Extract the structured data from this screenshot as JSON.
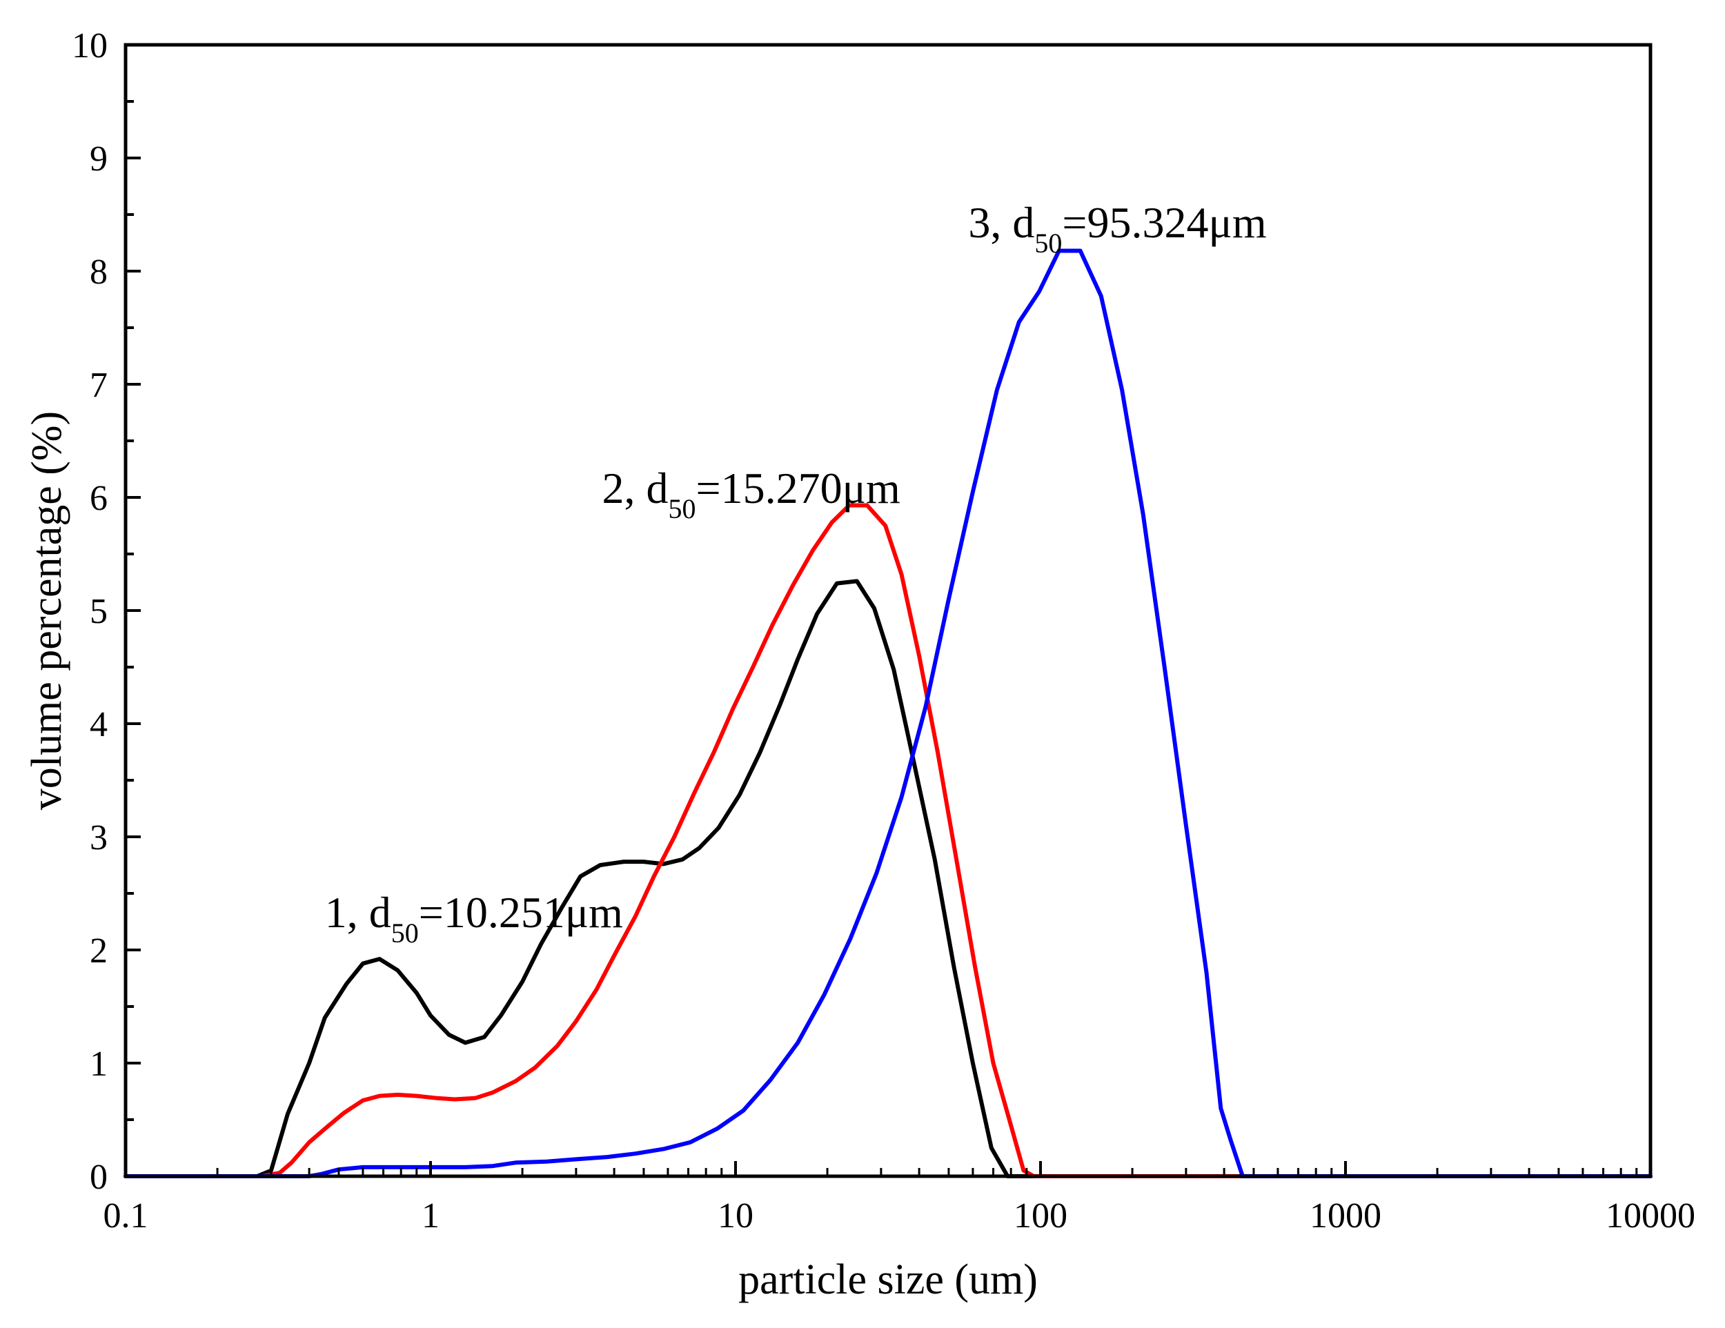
{
  "chart_data": {
    "type": "line",
    "title": "",
    "xlabel": "particle size (um)",
    "ylabel": "volume percentage (%)",
    "xscale": "log",
    "xlim": [
      0.1,
      10000
    ],
    "ylim": [
      0,
      10
    ],
    "x_ticks": [
      {
        "value": 0.1,
        "label": "0.1"
      },
      {
        "value": 1,
        "label": "1"
      },
      {
        "value": 10,
        "label": "10"
      },
      {
        "value": 100,
        "label": "100"
      },
      {
        "value": 1000,
        "label": "1000"
      },
      {
        "value": 10000,
        "label": "10000"
      }
    ],
    "y_ticks": [
      {
        "value": 0,
        "label": "0"
      },
      {
        "value": 1,
        "label": "1"
      },
      {
        "value": 2,
        "label": "2"
      },
      {
        "value": 3,
        "label": "3"
      },
      {
        "value": 4,
        "label": "4"
      },
      {
        "value": 5,
        "label": "5"
      },
      {
        "value": 6,
        "label": "6"
      },
      {
        "value": 7,
        "label": "7"
      },
      {
        "value": 8,
        "label": "8"
      },
      {
        "value": 9,
        "label": "9"
      },
      {
        "value": 10,
        "label": "10"
      }
    ],
    "grid": false,
    "series": [
      {
        "name": "1",
        "color": "#000000",
        "points": [
          [
            0.1,
            0
          ],
          [
            0.27,
            0
          ],
          [
            0.3,
            0.05
          ],
          [
            0.34,
            0.55
          ],
          [
            0.4,
            1.0
          ],
          [
            0.45,
            1.4
          ],
          [
            0.53,
            1.7
          ],
          [
            0.6,
            1.88
          ],
          [
            0.68,
            1.92
          ],
          [
            0.78,
            1.82
          ],
          [
            0.9,
            1.62
          ],
          [
            1.0,
            1.42
          ],
          [
            1.15,
            1.25
          ],
          [
            1.3,
            1.18
          ],
          [
            1.5,
            1.23
          ],
          [
            1.7,
            1.42
          ],
          [
            2.0,
            1.72
          ],
          [
            2.3,
            2.05
          ],
          [
            2.7,
            2.38
          ],
          [
            3.1,
            2.65
          ],
          [
            3.6,
            2.75
          ],
          [
            4.3,
            2.78
          ],
          [
            5.0,
            2.78
          ],
          [
            5.8,
            2.76
          ],
          [
            6.7,
            2.8
          ],
          [
            7.6,
            2.9
          ],
          [
            8.8,
            3.08
          ],
          [
            10.3,
            3.37
          ],
          [
            12.0,
            3.74
          ],
          [
            14,
            4.17
          ],
          [
            16,
            4.57
          ],
          [
            18.5,
            4.97
          ],
          [
            21.5,
            5.24
          ],
          [
            25,
            5.26
          ],
          [
            28.5,
            5.02
          ],
          [
            33,
            4.48
          ],
          [
            38,
            3.72
          ],
          [
            45,
            2.8
          ],
          [
            52,
            1.85
          ],
          [
            60,
            1.0
          ],
          [
            69,
            0.25
          ],
          [
            78,
            0
          ],
          [
            10000,
            0
          ]
        ]
      },
      {
        "name": "2",
        "color": "#ff0000",
        "points": [
          [
            0.1,
            0
          ],
          [
            0.28,
            0
          ],
          [
            0.32,
            0.03
          ],
          [
            0.35,
            0.12
          ],
          [
            0.4,
            0.3
          ],
          [
            0.46,
            0.44
          ],
          [
            0.52,
            0.56
          ],
          [
            0.6,
            0.67
          ],
          [
            0.68,
            0.71
          ],
          [
            0.78,
            0.72
          ],
          [
            0.9,
            0.71
          ],
          [
            1.05,
            0.69
          ],
          [
            1.2,
            0.68
          ],
          [
            1.4,
            0.69
          ],
          [
            1.6,
            0.74
          ],
          [
            1.9,
            0.84
          ],
          [
            2.2,
            0.96
          ],
          [
            2.6,
            1.15
          ],
          [
            3.0,
            1.37
          ],
          [
            3.5,
            1.65
          ],
          [
            4.0,
            1.95
          ],
          [
            4.7,
            2.3
          ],
          [
            5.4,
            2.65
          ],
          [
            6.3,
            3.0
          ],
          [
            7.3,
            3.38
          ],
          [
            8.5,
            3.75
          ],
          [
            9.8,
            4.13
          ],
          [
            11.4,
            4.5
          ],
          [
            13.2,
            4.87
          ],
          [
            15.4,
            5.22
          ],
          [
            17.9,
            5.53
          ],
          [
            20.7,
            5.78
          ],
          [
            23.6,
            5.93
          ],
          [
            27,
            5.93
          ],
          [
            31,
            5.75
          ],
          [
            35,
            5.32
          ],
          [
            40,
            4.6
          ],
          [
            46,
            3.75
          ],
          [
            53,
            2.8
          ],
          [
            61,
            1.85
          ],
          [
            70,
            1.0
          ],
          [
            79,
            0.5
          ],
          [
            88,
            0.05
          ],
          [
            95,
            0
          ],
          [
            10000,
            0
          ]
        ]
      },
      {
        "name": "3",
        "color": "#0000ff",
        "points": [
          [
            0.1,
            0
          ],
          [
            0.4,
            0
          ],
          [
            0.44,
            0.02
          ],
          [
            0.5,
            0.06
          ],
          [
            0.6,
            0.08
          ],
          [
            0.75,
            0.08
          ],
          [
            1.0,
            0.08
          ],
          [
            1.3,
            0.08
          ],
          [
            1.6,
            0.09
          ],
          [
            1.9,
            0.12
          ],
          [
            2.4,
            0.13
          ],
          [
            3.0,
            0.15
          ],
          [
            3.8,
            0.17
          ],
          [
            4.7,
            0.2
          ],
          [
            5.8,
            0.24
          ],
          [
            7.1,
            0.3
          ],
          [
            8.7,
            0.42
          ],
          [
            10.6,
            0.58
          ],
          [
            13,
            0.85
          ],
          [
            16,
            1.18
          ],
          [
            19.5,
            1.6
          ],
          [
            23.8,
            2.1
          ],
          [
            29,
            2.68
          ],
          [
            35,
            3.35
          ],
          [
            42,
            4.15
          ],
          [
            50,
            5.1
          ],
          [
            60,
            6.05
          ],
          [
            72,
            6.95
          ],
          [
            85,
            7.55
          ],
          [
            99,
            7.82
          ],
          [
            115,
            8.18
          ],
          [
            135,
            8.18
          ],
          [
            158,
            7.78
          ],
          [
            185,
            6.95
          ],
          [
            217,
            5.85
          ],
          [
            255,
            4.5
          ],
          [
            300,
            3.1
          ],
          [
            350,
            1.8
          ],
          [
            390,
            0.6
          ],
          [
            420,
            0.32
          ],
          [
            460,
            0
          ],
          [
            10000,
            0
          ]
        ]
      }
    ],
    "annotations": [
      {
        "prefix": "1, d",
        "sub": "50",
        "suffix": "=10.251μm",
        "x": 0.45,
        "y": 2.2
      },
      {
        "prefix": "2, d",
        "sub": "50",
        "suffix": "=15.270μm",
        "x": 3.65,
        "y": 5.95
      },
      {
        "prefix": "3, d",
        "sub": "50",
        "suffix": "=95.324μm",
        "x": 58,
        "y": 8.3
      }
    ]
  }
}
